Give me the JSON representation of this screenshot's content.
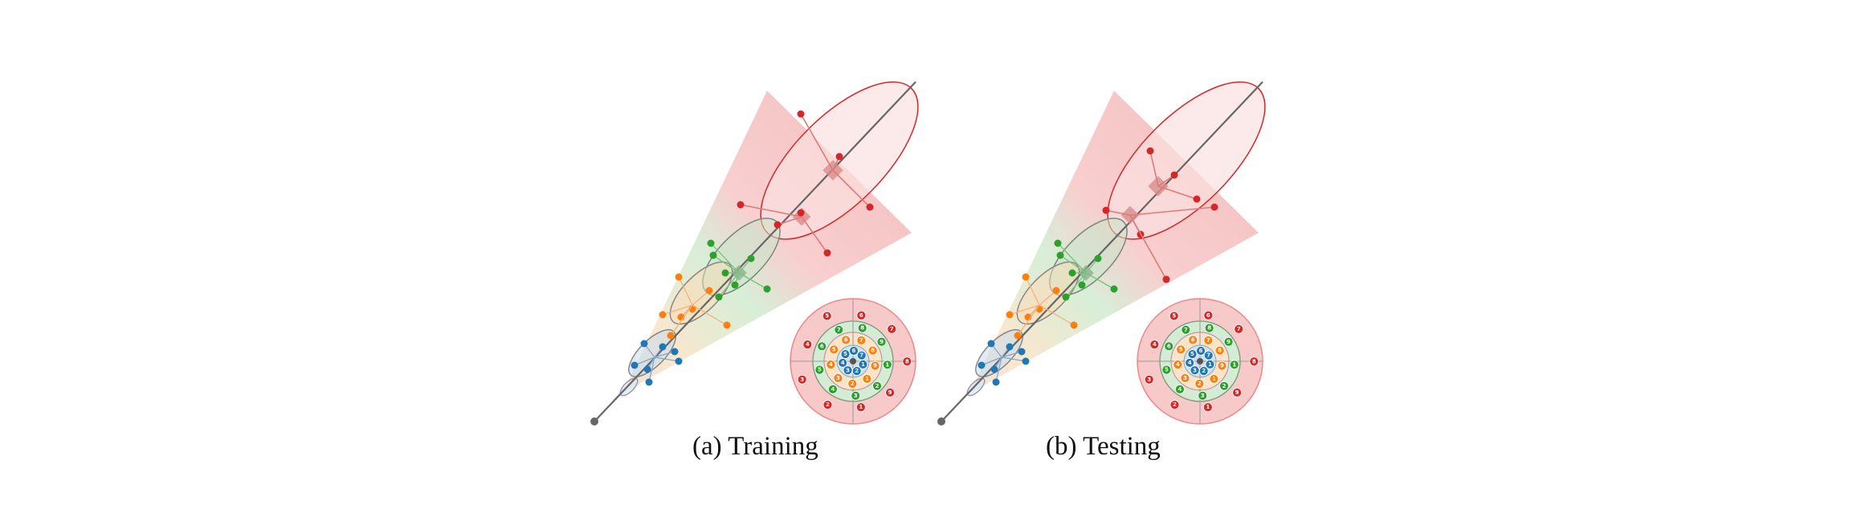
{
  "figure": {
    "panels": [
      {
        "caption": "(a) Training",
        "labels": {
          "blue": [
            "1",
            "2",
            "3",
            "4",
            "5",
            "6",
            "7",
            "8",
            "9"
          ],
          "orange": [
            "1",
            "2",
            "3",
            "4",
            "5",
            "6",
            "7",
            "8",
            "9"
          ],
          "green": [
            "1",
            "2",
            "3",
            "4",
            "5",
            "6",
            "7",
            "8",
            "9"
          ],
          "red": [
            "1",
            "2",
            "3",
            "4",
            "5",
            "6",
            "7",
            "8",
            "9"
          ]
        }
      },
      {
        "caption": "(b) Testing",
        "labels": {
          "blue": [
            "1",
            "2",
            "3",
            "4",
            "5",
            "6",
            "7",
            "8",
            "9"
          ],
          "orange": [
            "1",
            "2",
            "3",
            "4",
            "5",
            "6",
            "7",
            "8",
            "9"
          ],
          "green": [
            "1",
            "2",
            "3",
            "4",
            "5",
            "6",
            "7",
            "8",
            "9"
          ],
          "red": [
            "1",
            "2",
            "3",
            "4",
            "5",
            "6",
            "7",
            "8",
            "9"
          ]
        }
      }
    ],
    "colors": {
      "blue": "#1f77b4",
      "orange": "#ff7f0e",
      "green": "#2ca02c",
      "red": "#d62728",
      "axis": "#666666",
      "blue_fill": "#cfe0f0",
      "orange_fill": "#fde3c8",
      "green_fill": "#d3ecd3",
      "red_fill": "#f7c9c9"
    }
  }
}
